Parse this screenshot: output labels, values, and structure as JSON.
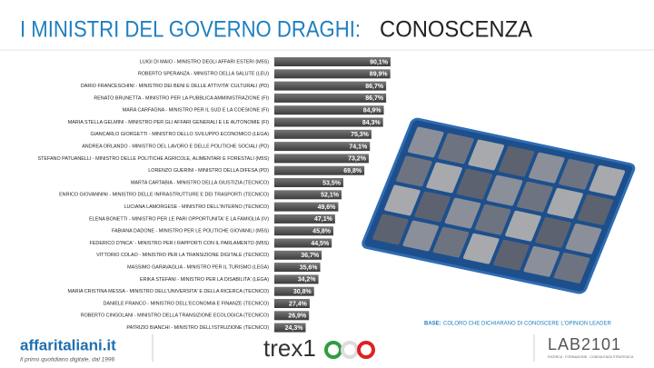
{
  "chart_data": {
    "type": "hbar",
    "title": "I MINISTRI DEL GOVERNO DRAGHI:",
    "subtitle": "CONOSCENZA",
    "categories": [
      "LUIGI DI MAIO - MINISTRO DEGLI AFFARI ESTERI (M5S)",
      "ROBERTO SPERANZA - MINISTRO DELLA SALUTE (LEU)",
      "DARIO FRANCESCHINI - MINISTRO DEI BENI E DELLE ATTIVITA' CULTURALI (PD)",
      "RENATO BRUNETTA - MINISTRO PER LA PUBBLICA AMMINISTRAZIONE (FI)",
      "MARA CARFAGNA - MINISTRO PER IL SUD E LA COESIONE (FI)",
      "MARIA STELLA GELMINI - MINISTRO PER GLI AFFARI GENERALI E LE AUTONOMIE (FI)",
      "GIANCARLO GIORGETTI - MINISTRO DELLO SVILUPPO ECONOMICO (LEGA)",
      "ANDREA ORLANDO - MINISTRO DEL LAVORO E DELLE POLITICHE SOCIALI (PD)",
      "STEFANO PATUANELLI - MINISTRO DELLE POLITICHE AGRICOLE, ALIMENTARI E FORESTALI (M5S)",
      "LORENZO GUERINI - MINISTRO DELLA DIFESA (PD)",
      "MARTA CARTABIA - MINISTRO DELLA GIUSTIZIA (TECNICO)",
      "ENRICO GIOVANNINI - MINISTRO DELLE INFRASTRUTTURE E DEI TRASPORTI (TECNICO)",
      "LUCIANA LAMORGESE - MINISTRO DELL'INTERNO (TECNICO)",
      "ELENA BONETTI - MINISTRO PER LE PARI OPPORTUNITA' E LA FAMIGLIA (IV)",
      "FABIANA DADONE - MINISTRO PER LE POLITICHE GIOVANILI (M5S)",
      "FEDERICO D'INCA' - MINISTRO PER I RAPPORTI CON IL PARLAMENTO (M5S)",
      "VITTORIO COLAO - MINISTRO PER LA TRANSIZIONE DIGITALE (TECNICO)",
      "MASSIMO GARAVAGLIA - MINISTRO PER IL TURISMO (LEGA)",
      "ERIKA STEFANI - MINISTRO PER LA DISABILITA' (LEGA)",
      "MARIA CRISTINA MESSA - MINISTRO DELL'UNIVERSITA' E DELLA RICERCA (TECNICO)",
      "DANIELE FRANCO - MINISTRO DELL'ECONOMIA E FINANZE (TECNICO)",
      "ROBERTO CINGOLANI - MINISTRO DELLA TRANSIZIONE ECOLOGICA (TECNICO)",
      "PATRIZIO BIANCHI - MINISTRO DELL'ISTRUZIONE (TECNICO)"
    ],
    "values": [
      90.1,
      89.9,
      86.7,
      86.7,
      84.9,
      84.3,
      75.3,
      74.1,
      73.2,
      69.8,
      53.5,
      52.1,
      49.6,
      47.1,
      45.8,
      44.5,
      36.7,
      35.6,
      34.2,
      30.8,
      27.4,
      26.9,
      24.3
    ],
    "value_labels": [
      "90,1%",
      "89,9%",
      "86,7%",
      "86,7%",
      "84,9%",
      "84,3%",
      "75,3%",
      "74,1%",
      "73,2%",
      "69,8%",
      "53,5%",
      "52,1%",
      "49,6%",
      "47,1%",
      "45,8%",
      "44,5%",
      "36,7%",
      "35,6%",
      "34,2%",
      "30,8%",
      "27,4%",
      "26,9%",
      "24,3%"
    ],
    "color": "#555555",
    "xlim": [
      0,
      100
    ],
    "note_label": "BASE:",
    "note": "COLORO CHE DICHIARANO DI CONOSCERE L'OPINION LEADER"
  },
  "footer": {
    "brand": "affaritaliani.it",
    "tagline": "Il primo quotidiano digitale, dal 1996",
    "logo2": "trex1",
    "logo3": "LAB2101",
    "logo3_tagline": "RICERCA · FORMAZIONE · CONSULENZA STRATEGICA"
  }
}
